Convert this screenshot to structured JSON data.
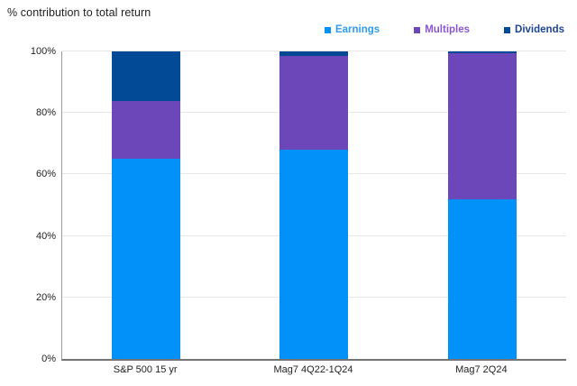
{
  "chart_data": {
    "type": "bar",
    "subtype": "stacked-percentage",
    "title": "% contribution to total return",
    "categories": [
      "S&P 500 15 yr",
      "Mag7 4Q22-1Q24",
      "Mag7 2Q24"
    ],
    "series": [
      {
        "name": "Earnings",
        "color": "#0191F8",
        "label_color": "#2F9CF3",
        "values": [
          65,
          68,
          52
        ]
      },
      {
        "name": "Multiples",
        "color": "#6C47BA",
        "label_color": "#8A57D0",
        "values": [
          19,
          30.5,
          47.5
        ]
      },
      {
        "name": "Dividends",
        "color": "#024A96",
        "label_color": "#1D4596",
        "values": [
          16,
          1.5,
          0.5
        ]
      }
    ],
    "xlabel": "",
    "ylabel": "",
    "ylim": [
      0,
      100
    ],
    "yticks": [
      {
        "value": 0,
        "label": "0%"
      },
      {
        "value": 20,
        "label": "20%"
      },
      {
        "value": 40,
        "label": "40%"
      },
      {
        "value": 60,
        "label": "60%"
      },
      {
        "value": 80,
        "label": "80%"
      },
      {
        "value": 100,
        "label": "100%"
      }
    ],
    "grid": true,
    "legend_position": "top-right"
  },
  "style_colors": {
    "gridline": "#e7e7e7",
    "axis_left": "#9b9b9b",
    "axis_bottom": "#747474",
    "text": "#1f1f1f"
  }
}
